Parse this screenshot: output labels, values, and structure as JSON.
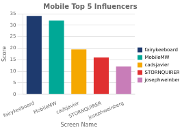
{
  "chart_data": {
    "type": "bar",
    "title": "Mobile Top 5 Influencers",
    "x_label": "Screen Name",
    "y_label": "Score",
    "categories": [
      "fairykeeboard",
      "MobileMW",
      "cadsjavier",
      "STORNQUIRER",
      "josephweinberg"
    ],
    "values": [
      34,
      32,
      19.5,
      16,
      12
    ],
    "colors": [
      "#1e3a6e",
      "#00a896",
      "#f5a800",
      "#e03030",
      "#c87db8"
    ],
    "ylim": [
      0,
      35
    ],
    "yticks": [
      0,
      5,
      10,
      15,
      20,
      25,
      30,
      35
    ],
    "grid": true,
    "legend": "right"
  }
}
